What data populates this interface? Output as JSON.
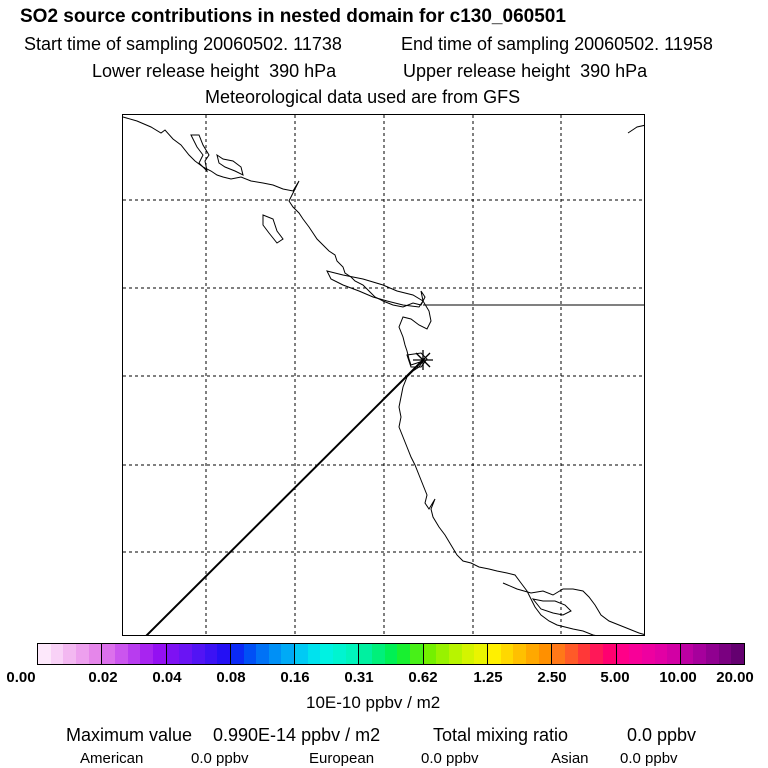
{
  "header": {
    "title": "SO2 source contributions in nested domain for c130_060501",
    "start_time": "Start time of sampling 20060502. 11738",
    "end_time": "End time of sampling 20060502. 11958",
    "lower_height": "Lower release height  390 hPa",
    "upper_height": "Upper release height  390 hPa",
    "met_data": "Meteorological data used are from GFS"
  },
  "map": {
    "grid": "dashed",
    "marker": "asterisk-release-point",
    "features": [
      "coastline",
      "trajectory-line"
    ]
  },
  "colorbar": {
    "ticks": [
      "0.00",
      "0.02",
      "0.04",
      "0.08",
      "0.16",
      "0.31",
      "0.62",
      "1.25",
      "2.50",
      "5.00",
      "10.00",
      "20.00"
    ],
    "unit": "10E-10 ppbv / m2",
    "colors": [
      "#fde8fb",
      "#f9d2f7",
      "#f3b8f1",
      "#eda0ee",
      "#e586ea",
      "#dc70ec",
      "#cb55ee",
      "#b83cef",
      "#a824f0",
      "#9410f2",
      "#7e12f3",
      "#6a14f4",
      "#5214f4",
      "#3c12f4",
      "#2410f4",
      "#0b2af6",
      "#0050f6",
      "#0072f6",
      "#0090f6",
      "#00aaf6",
      "#00caf4",
      "#00e2ee",
      "#00f2e2",
      "#00f4d0",
      "#00f4bc",
      "#00f0a0",
      "#00f07a",
      "#00f054",
      "#18f030",
      "#48f018",
      "#74f000",
      "#98f200",
      "#b8f400",
      "#d4f400",
      "#eaf400",
      "#fff000",
      "#ffd800",
      "#ffc000",
      "#ffa800",
      "#ff9000",
      "#ff7818",
      "#ff5a28",
      "#ff3838",
      "#ff1858",
      "#ff0070",
      "#ff0088",
      "#f80098",
      "#ee00a0",
      "#e200a4",
      "#d200a4",
      "#bc00a2",
      "#a6009c",
      "#900090",
      "#7a0080",
      "#640070"
    ]
  },
  "footer": {
    "max_label": "Maximum value",
    "max_value": "0.990E-14 ppbv / m2",
    "total_label": "Total mixing ratio",
    "total_value": "0.0 ppbv",
    "regions": [
      {
        "name": "American",
        "value": "0.0 ppbv"
      },
      {
        "name": "European",
        "value": "0.0 ppbv"
      },
      {
        "name": "Asian",
        "value": "0.0 ppbv"
      }
    ]
  }
}
